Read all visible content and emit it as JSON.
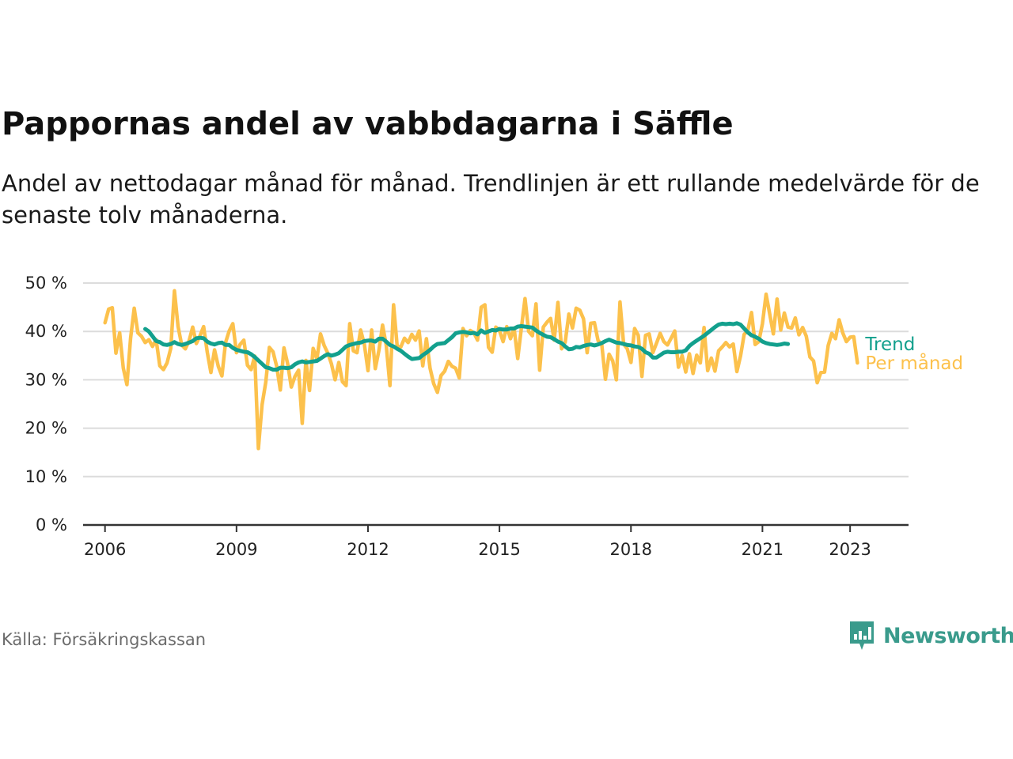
{
  "title": "Pappornas andel av vabbdagarna i Säffle",
  "subtitle": "Andel av nettodagar månad för månad. Trendlinjen är ett rullande medelvärde för de senaste tolv månaderna.",
  "source": "Källa: Försäkringskassan",
  "brand": {
    "name": "Newsworthy",
    "icon": "newsworthy-logo-icon",
    "color": "#3a9b8c"
  },
  "colors": {
    "trend": "#13a08d",
    "monthly": "#fcc14c",
    "grid": "#dcdcdc",
    "axis": "#333333"
  },
  "chart_data": {
    "type": "line",
    "x_axis": {
      "min": "2005-07",
      "max": "2024-05",
      "ticks": [
        "2006",
        "2009",
        "2012",
        "2015",
        "2018",
        "2021",
        "2023"
      ]
    },
    "y_axis": {
      "min": 0,
      "max": 50,
      "ticks": [
        0,
        10,
        20,
        30,
        40,
        50
      ],
      "tick_labels": [
        "0 %",
        "10 %",
        "20 %",
        "30 %",
        "40 %",
        "50 %"
      ]
    },
    "grid": true,
    "legend_placement": "line-end labels, right",
    "series": [
      {
        "name": "Per månad",
        "start": "2006-01",
        "frequency": "monthly",
        "values": [
          41.8,
          44.6,
          44.9,
          35.5,
          39.7,
          32.4,
          29.0,
          38.6,
          44.8,
          39.7,
          39.0,
          37.7,
          38.3,
          36.9,
          38.3,
          32.9,
          32.1,
          33.5,
          36.5,
          48.4,
          41.0,
          37.2,
          36.4,
          38.0,
          40.9,
          37.5,
          39.1,
          41.0,
          35.7,
          31.5,
          36.2,
          32.8,
          30.8,
          37.7,
          40.1,
          41.6,
          35.6,
          37.3,
          38.2,
          33.0,
          32.1,
          34.9,
          15.8,
          24.8,
          29.5,
          36.7,
          35.8,
          32.8,
          27.9,
          36.6,
          33.4,
          28.5,
          30.7,
          32.0,
          21.0,
          34.0,
          27.8,
          36.5,
          34.3,
          39.5,
          37.1,
          35.5,
          33.3,
          30.0,
          33.6,
          29.6,
          28.8,
          41.6,
          36.0,
          35.6,
          40.3,
          37.3,
          31.9,
          40.3,
          32.3,
          36.1,
          41.3,
          37.2,
          28.8,
          45.5,
          36.9,
          36.8,
          38.6,
          37.7,
          39.4,
          38.2,
          40.1,
          32.9,
          38.5,
          32.4,
          29.2,
          27.4,
          30.9,
          31.8,
          33.8,
          32.8,
          32.4,
          30.4,
          40.6,
          39.1,
          40.2,
          39.7,
          38.2,
          45.0,
          45.5,
          36.7,
          35.7,
          40.9,
          40.2,
          37.9,
          41.0,
          38.5,
          40.7,
          34.4,
          40.7,
          46.8,
          40.0,
          39.1,
          45.7,
          32.0,
          40.9,
          41.9,
          42.7,
          38.2,
          46.0,
          36.4,
          37.8,
          43.6,
          40.7,
          44.8,
          44.4,
          42.6,
          35.6,
          41.7,
          41.8,
          38.1,
          37.4,
          30.1,
          35.3,
          33.9,
          30.0,
          46.1,
          37.4,
          36.4,
          33.6,
          40.6,
          39.2,
          30.7,
          39.2,
          39.5,
          35.6,
          37.6,
          39.6,
          37.9,
          37.2,
          38.6,
          40.1,
          32.6,
          35.0,
          31.6,
          35.4,
          31.3,
          35.1,
          33.5,
          40.8,
          31.9,
          34.5,
          31.8,
          36.0,
          36.8,
          37.7,
          36.8,
          37.4,
          31.7,
          34.9,
          39.4,
          40.2,
          43.9,
          37.3,
          37.9,
          41.6,
          47.7,
          43.6,
          39.5,
          46.7,
          40.3,
          43.8,
          40.9,
          40.7,
          42.8,
          39.3,
          40.8,
          39.0,
          34.7,
          33.9,
          29.4,
          31.5,
          31.6,
          37.1,
          39.6,
          38.5,
          42.4,
          39.7,
          37.9,
          38.8,
          38.9,
          33.5
        ]
      },
      {
        "name": "Trend",
        "start": "2006-12",
        "frequency": "monthly",
        "values": [
          40.5,
          40.0,
          39.0,
          38.0,
          37.8,
          37.3,
          37.2,
          37.4,
          37.8,
          37.4,
          37.2,
          37.4,
          37.7,
          38.0,
          38.6,
          38.7,
          38.6,
          37.9,
          37.5,
          37.3,
          37.6,
          37.7,
          37.2,
          37.2,
          36.6,
          36.2,
          36.0,
          35.8,
          35.7,
          35.3,
          34.7,
          34.0,
          33.3,
          32.6,
          32.4,
          32.1,
          32.1,
          32.5,
          32.5,
          32.4,
          32.6,
          33.2,
          33.6,
          33.8,
          33.6,
          33.7,
          33.8,
          33.9,
          34.4,
          34.9,
          35.3,
          35.0,
          35.2,
          35.5,
          36.2,
          36.9,
          37.2,
          37.4,
          37.6,
          37.7,
          38.0,
          38.1,
          38.1,
          37.9,
          38.5,
          38.5,
          37.9,
          37.2,
          36.9,
          36.4,
          36.0,
          35.4,
          34.8,
          34.3,
          34.4,
          34.5,
          35.1,
          35.6,
          36.2,
          36.9,
          37.4,
          37.5,
          37.6,
          38.2,
          38.8,
          39.6,
          39.8,
          39.9,
          39.8,
          39.6,
          39.7,
          39.4,
          40.2,
          39.7,
          40.0,
          40.3,
          40.2,
          40.5,
          40.4,
          40.4,
          40.6,
          40.6,
          41.0,
          41.1,
          41.0,
          40.9,
          40.8,
          40.2,
          39.7,
          39.3,
          38.9,
          38.8,
          38.4,
          37.9,
          37.6,
          36.9,
          36.3,
          36.4,
          36.8,
          36.7,
          37.0,
          37.2,
          37.3,
          37.1,
          37.3,
          37.6,
          38.0,
          38.3,
          38.0,
          37.7,
          37.6,
          37.4,
          37.2,
          37.1,
          36.9,
          36.8,
          36.4,
          35.7,
          35.4,
          34.6,
          34.6,
          35.1,
          35.6,
          35.8,
          35.7,
          35.7,
          35.8,
          35.8,
          36.1,
          37.0,
          37.6,
          38.1,
          38.6,
          39.1,
          39.7,
          40.3,
          40.9,
          41.4,
          41.6,
          41.5,
          41.6,
          41.5,
          41.7,
          41.4,
          40.6,
          39.8,
          39.2,
          38.9,
          38.5,
          37.9,
          37.6,
          37.4,
          37.3,
          37.2,
          37.3,
          37.5,
          37.4
        ]
      }
    ],
    "legend": [
      {
        "label": "Trend",
        "color": "#13a08d"
      },
      {
        "label": "Per månad",
        "color": "#fcc14c"
      }
    ]
  }
}
